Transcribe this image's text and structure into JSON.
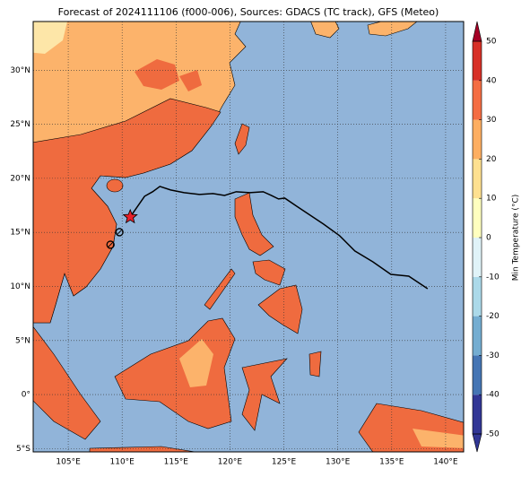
{
  "title": "Forecast of 2024111106 (f000-006), Sources: GDACS (TC track), GFS (Meteo)",
  "map": {
    "lonlim": [
      101.75,
      141.67
    ],
    "latlim": [
      -5.3,
      34.5
    ],
    "lon_ticks": [
      {
        "value": 105,
        "label": "105°E"
      },
      {
        "value": 110,
        "label": "110°E"
      },
      {
        "value": 115,
        "label": "115°E"
      },
      {
        "value": 120,
        "label": "120°E"
      },
      {
        "value": 125,
        "label": "125°E"
      },
      {
        "value": 130,
        "label": "130°E"
      },
      {
        "value": 135,
        "label": "135°E"
      },
      {
        "value": 140,
        "label": "140°E"
      }
    ],
    "lat_ticks": [
      {
        "value": 30,
        "label": "30°N"
      },
      {
        "value": 25,
        "label": "25°N"
      },
      {
        "value": 20,
        "label": "20°N"
      },
      {
        "value": 15,
        "label": "15°N"
      },
      {
        "value": 10,
        "label": "10°N"
      },
      {
        "value": 5,
        "label": "5°N"
      },
      {
        "value": 0,
        "label": "0°"
      },
      {
        "value": -5,
        "label": "5°S"
      }
    ],
    "track": {
      "lon": [
        110.75,
        111.33,
        112.08,
        112.83,
        113.5,
        114.5,
        115.75,
        117.17,
        118.42,
        119.5,
        120.58,
        121.83,
        123.08,
        123.83,
        124.5,
        125.08,
        126.17,
        127.42,
        128.67,
        130.17,
        131.58,
        133.25,
        134.92,
        136.58,
        138.33
      ],
      "lat": [
        16.43,
        17.26,
        18.34,
        18.76,
        19.25,
        18.92,
        18.67,
        18.51,
        18.59,
        18.42,
        18.76,
        18.67,
        18.76,
        18.42,
        18.09,
        18.17,
        17.43,
        16.6,
        15.77,
        14.69,
        13.28,
        12.28,
        11.12,
        10.95,
        9.79
      ]
    },
    "past_positions": {
      "lon": [
        109.75,
        108.92
      ],
      "lat": [
        15.02,
        13.86
      ]
    }
  },
  "colorbar": {
    "label": "Min Temperature (°C)",
    "ticks": [
      -50,
      -40,
      -30,
      -20,
      -10,
      0,
      10,
      20,
      30,
      40,
      50
    ],
    "colors": [
      "#313695",
      "#4575b4",
      "#74add1",
      "#abd9e9",
      "#e0f3f8",
      "#ffffbf",
      "#fee090",
      "#fdae61",
      "#f46d43",
      "#d73027",
      "#a50026"
    ]
  }
}
